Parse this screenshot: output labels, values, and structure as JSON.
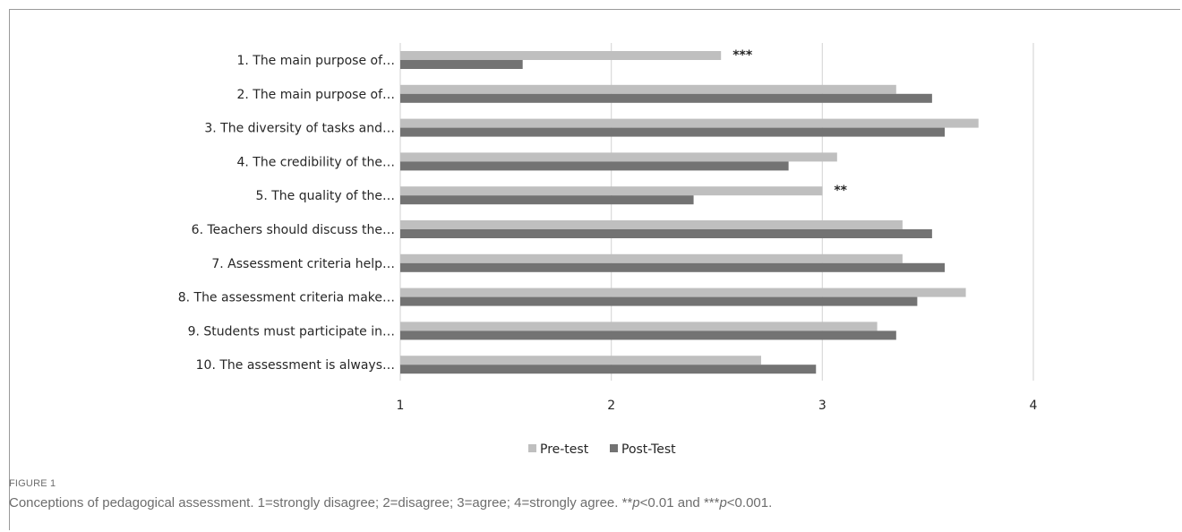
{
  "chart_data": {
    "type": "bar",
    "orientation": "horizontal",
    "categories": [
      "1. The main purpose of…",
      "2. The main purpose of…",
      "3. The diversity of tasks and…",
      "4. The credibility of the…",
      "5. The quality of the…",
      "6. Teachers should discuss the…",
      "7. Assessment criteria help…",
      "8. The assessment criteria make…",
      "9. Students must participate in…",
      "10. The assessment is always…"
    ],
    "series": [
      {
        "name": "Pre-test",
        "color": "#bfbfbf",
        "values": [
          2.52,
          3.35,
          3.74,
          3.07,
          3.0,
          3.38,
          3.38,
          3.68,
          3.26,
          2.71
        ]
      },
      {
        "name": "Post-Test",
        "color": "#737373",
        "values": [
          1.58,
          3.52,
          3.58,
          2.84,
          2.39,
          3.52,
          3.58,
          3.45,
          3.35,
          2.97
        ]
      }
    ],
    "significance": [
      {
        "category_index": 0,
        "label": "***"
      },
      {
        "category_index": 4,
        "label": "**"
      }
    ],
    "xlim": [
      1,
      4.95
    ],
    "xticks": [
      1,
      2,
      3,
      4
    ],
    "grid": "vertical",
    "legend": "bottom-center"
  },
  "figure": {
    "label": "FIGURE 1",
    "caption_parts": [
      {
        "text": "Conceptions of pedagogical assessment. 1=strongly disagree; 2=disagree; 3=agree; 4=strongly agree. **",
        "italic": false
      },
      {
        "text": "p",
        "italic": true
      },
      {
        "text": "<0.01 and ***",
        "italic": false
      },
      {
        "text": "p",
        "italic": true
      },
      {
        "text": "<0.001.",
        "italic": false
      }
    ]
  }
}
